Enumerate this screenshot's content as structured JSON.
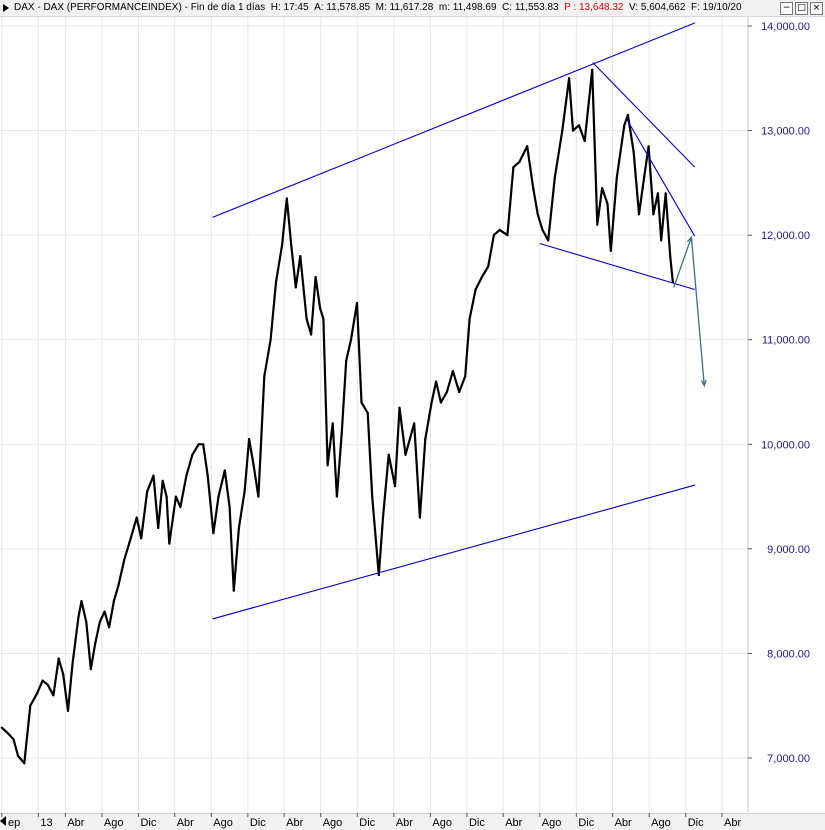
{
  "header": {
    "symbol": "DAX - DAX (PERFORMANCEINDEX)",
    "period": "Fin de día 1 días",
    "time": "H: 17:45",
    "open": "A: 11,578.85",
    "high": "M: 11,617.28",
    "low": "m: 11,498.69",
    "close": "C: 11,553.83",
    "p": "P : 13,648.32",
    "volume": "V: 5,604,662",
    "date": "F: 19/10/20"
  },
  "colors": {
    "price": "#000000",
    "trendline": "#0000cc",
    "forecast": "#3f6f86",
    "axis_label": "#1a1a8a",
    "grid": "#e6e6e6",
    "p_value": "#dd0000"
  },
  "icons": [
    "menu-triangle-icon",
    "window-minimize-icon",
    "window-restore-icon",
    "window-close-icon",
    "scroll-left-icon"
  ],
  "chart_data": {
    "type": "line",
    "title": "",
    "xlabel": "",
    "ylabel": "",
    "ylim": [
      6700,
      14150
    ],
    "y_ticks": [
      7000,
      8000,
      9000,
      10000,
      11000,
      12000,
      13000,
      14000
    ],
    "y_tick_labels": [
      "7,000.00",
      "8,000.00",
      "9,000.00",
      "10,000.00",
      "11,000.00",
      "12,000.00",
      "13,000.00",
      "14,000.00"
    ],
    "x_tick_labels": [
      "ep",
      "13",
      "Abr",
      "Ago",
      "Dic",
      "Abr",
      "Ago",
      "Dic",
      "Abr",
      "Ago",
      "Dic",
      "Abr",
      "Ago",
      "Dic",
      "Abr",
      "Ago",
      "Dic",
      "Abr",
      "Ago",
      "Dic",
      "Abr"
    ],
    "x_tick_dates": [
      "2012-09",
      "2013-01",
      "2013-04",
      "2013-08",
      "2013-12",
      "2014-04",
      "2014-08",
      "2014-12",
      "2015-04",
      "2015-08",
      "2015-12",
      "2016-04",
      "2016-08",
      "2016-12",
      "2017-04",
      "2017-08",
      "2017-12",
      "2018-04",
      "2018-08",
      "2018-12",
      "2019-04"
    ],
    "grid": true,
    "legend": "none",
    "series": [
      {
        "points": [
          [
            "2012-09-01",
            7290
          ],
          [
            "2012-09-20",
            7240
          ],
          [
            "2012-10-10",
            7180
          ],
          [
            "2012-10-25",
            7020
          ],
          [
            "2012-11-15",
            6950
          ],
          [
            "2012-12-05",
            7500
          ],
          [
            "2012-12-28",
            7620
          ],
          [
            "2013-01-15",
            7740
          ],
          [
            "2013-02-01",
            7700
          ],
          [
            "2013-02-20",
            7600
          ],
          [
            "2013-03-10",
            7950
          ],
          [
            "2013-03-25",
            7800
          ],
          [
            "2013-04-10",
            7450
          ],
          [
            "2013-04-25",
            7900
          ],
          [
            "2013-05-15",
            8350
          ],
          [
            "2013-05-25",
            8500
          ],
          [
            "2013-06-10",
            8300
          ],
          [
            "2013-06-25",
            7850
          ],
          [
            "2013-07-10",
            8100
          ],
          [
            "2013-07-25",
            8300
          ],
          [
            "2013-08-10",
            8400
          ],
          [
            "2013-08-25",
            8250
          ],
          [
            "2013-09-10",
            8500
          ],
          [
            "2013-09-25",
            8650
          ],
          [
            "2013-10-15",
            8900
          ],
          [
            "2013-11-05",
            9100
          ],
          [
            "2013-11-25",
            9300
          ],
          [
            "2013-12-10",
            9100
          ],
          [
            "2013-12-30",
            9550
          ],
          [
            "2014-01-20",
            9700
          ],
          [
            "2014-02-05",
            9200
          ],
          [
            "2014-02-20",
            9650
          ],
          [
            "2014-03-05",
            9500
          ],
          [
            "2014-03-14",
            9050
          ],
          [
            "2014-04-05",
            9500
          ],
          [
            "2014-04-20",
            9400
          ],
          [
            "2014-05-10",
            9700
          ],
          [
            "2014-05-30",
            9900
          ],
          [
            "2014-06-20",
            10000
          ],
          [
            "2014-07-05",
            10000
          ],
          [
            "2014-07-20",
            9700
          ],
          [
            "2014-08-08",
            9150
          ],
          [
            "2014-08-25",
            9500
          ],
          [
            "2014-09-15",
            9750
          ],
          [
            "2014-10-01",
            9400
          ],
          [
            "2014-10-15",
            8600
          ],
          [
            "2014-11-01",
            9200
          ],
          [
            "2014-11-20",
            9550
          ],
          [
            "2014-12-05",
            10050
          ],
          [
            "2014-12-20",
            9800
          ],
          [
            "2015-01-05",
            9500
          ],
          [
            "2015-01-25",
            10650
          ],
          [
            "2015-02-15",
            11000
          ],
          [
            "2015-03-05",
            11550
          ],
          [
            "2015-03-25",
            11900
          ],
          [
            "2015-04-10",
            12350
          ],
          [
            "2015-04-25",
            11900
          ],
          [
            "2015-05-10",
            11500
          ],
          [
            "2015-05-25",
            11800
          ],
          [
            "2015-06-15",
            11200
          ],
          [
            "2015-06-30",
            11050
          ],
          [
            "2015-07-15",
            11600
          ],
          [
            "2015-07-30",
            11300
          ],
          [
            "2015-08-10",
            11200
          ],
          [
            "2015-08-24",
            9800
          ],
          [
            "2015-09-10",
            10200
          ],
          [
            "2015-09-24",
            9500
          ],
          [
            "2015-10-10",
            10100
          ],
          [
            "2015-10-25",
            10800
          ],
          [
            "2015-11-10",
            11000
          ],
          [
            "2015-11-30",
            11350
          ],
          [
            "2015-12-15",
            10400
          ],
          [
            "2016-01-05",
            10300
          ],
          [
            "2016-01-20",
            9500
          ],
          [
            "2016-02-11",
            8750
          ],
          [
            "2016-02-25",
            9300
          ],
          [
            "2016-03-15",
            9900
          ],
          [
            "2016-04-05",
            9600
          ],
          [
            "2016-04-20",
            10350
          ],
          [
            "2016-05-10",
            9900
          ],
          [
            "2016-06-08",
            10200
          ],
          [
            "2016-06-27",
            9300
          ],
          [
            "2016-07-15",
            10050
          ],
          [
            "2016-08-05",
            10400
          ],
          [
            "2016-08-20",
            10600
          ],
          [
            "2016-09-05",
            10400
          ],
          [
            "2016-09-25",
            10500
          ],
          [
            "2016-10-15",
            10700
          ],
          [
            "2016-11-05",
            10500
          ],
          [
            "2016-11-25",
            10650
          ],
          [
            "2016-12-10",
            11200
          ],
          [
            "2016-12-30",
            11480
          ],
          [
            "2017-01-20",
            11600
          ],
          [
            "2017-02-10",
            11700
          ],
          [
            "2017-03-01",
            12000
          ],
          [
            "2017-03-20",
            12050
          ],
          [
            "2017-04-15",
            12000
          ],
          [
            "2017-05-05",
            12650
          ],
          [
            "2017-05-25",
            12700
          ],
          [
            "2017-06-20",
            12850
          ],
          [
            "2017-07-10",
            12450
          ],
          [
            "2017-07-25",
            12200
          ],
          [
            "2017-08-10",
            12050
          ],
          [
            "2017-08-29",
            11950
          ],
          [
            "2017-09-20",
            12550
          ],
          [
            "2017-10-15",
            13000
          ],
          [
            "2017-11-07",
            13500
          ],
          [
            "2017-11-20",
            13000
          ],
          [
            "2017-12-10",
            13050
          ],
          [
            "2017-12-29",
            12900
          ],
          [
            "2018-01-23",
            13580
          ],
          [
            "2018-02-09",
            12100
          ],
          [
            "2018-02-25",
            12450
          ],
          [
            "2018-03-15",
            12300
          ],
          [
            "2018-03-26",
            11850
          ],
          [
            "2018-04-15",
            12550
          ],
          [
            "2018-05-10",
            13050
          ],
          [
            "2018-05-22",
            13150
          ],
          [
            "2018-06-10",
            12800
          ],
          [
            "2018-06-28",
            12200
          ],
          [
            "2018-07-15",
            12550
          ],
          [
            "2018-07-30",
            12850
          ],
          [
            "2018-08-15",
            12200
          ],
          [
            "2018-08-30",
            12400
          ],
          [
            "2018-09-10",
            11950
          ],
          [
            "2018-09-25",
            12400
          ],
          [
            "2018-10-10",
            11800
          ],
          [
            "2018-10-19",
            11553.83
          ]
        ]
      }
    ],
    "annotations": {
      "channel_upper": [
        [
          "2014-08-05",
          12170
        ],
        [
          "2019-01-01",
          14030
        ]
      ],
      "channel_lower": [
        [
          "2014-08-05",
          8330
        ],
        [
          "2019-01-01",
          9610
        ]
      ],
      "falling_resistance_1": [
        [
          "2018-01-25",
          13650
        ],
        [
          "2018-12-31",
          12650
        ]
      ],
      "falling_resistance_2": [
        [
          "2018-05-20",
          13100
        ],
        [
          "2018-12-31",
          11990
        ]
      ],
      "wedge_support": [
        [
          "2017-08-01",
          11920
        ],
        [
          "2018-12-31",
          11480
        ]
      ],
      "forecast_arrow": [
        [
          "2018-10-22",
          11500
        ],
        [
          "2018-12-20",
          11980
        ],
        [
          "2019-02-01",
          10560
        ]
      ]
    }
  }
}
